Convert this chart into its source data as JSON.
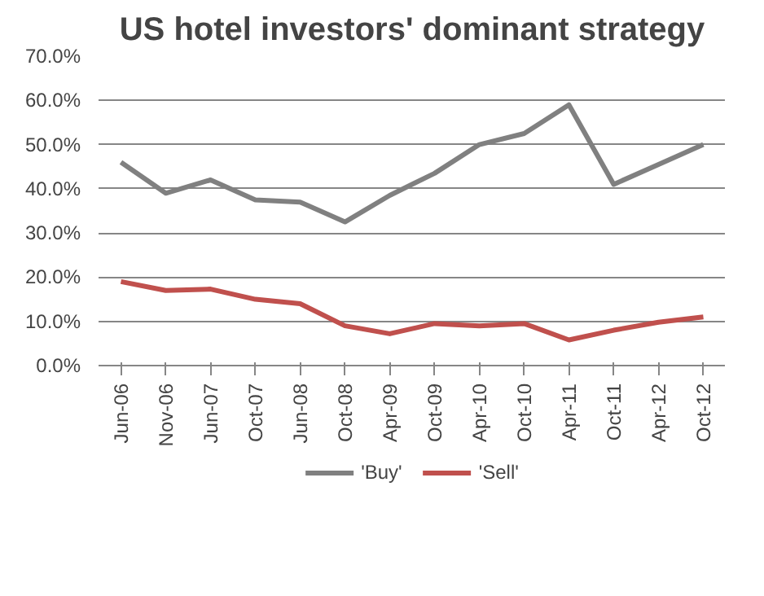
{
  "chart_data": {
    "type": "line",
    "title": "US hotel investors' dominant strategy",
    "categories": [
      "Jun-06",
      "Nov-06",
      "Jun-07",
      "Oct-07",
      "Jun-08",
      "Oct-08",
      "Apr-09",
      "Oct-09",
      "Apr-10",
      "Oct-10",
      "Apr-11",
      "Oct-11",
      "Apr-12",
      "Oct-12"
    ],
    "series": [
      {
        "name": "'Buy'",
        "color": "#808080",
        "values": [
          46,
          39,
          42,
          37.5,
          37,
          32.5,
          38.5,
          43.5,
          50,
          52.5,
          59,
          41,
          45.5,
          50
        ]
      },
      {
        "name": "'Sell'",
        "color": "#c0504d",
        "values": [
          19,
          17,
          17.3,
          15,
          14,
          9,
          7.2,
          9.5,
          9,
          9.5,
          5.8,
          8,
          9.8,
          11
        ]
      }
    ],
    "ylim": [
      0,
      70
    ],
    "yticks": [
      {
        "value": 0,
        "label": "0.0%"
      },
      {
        "value": 10,
        "label": "10.0%"
      },
      {
        "value": 20,
        "label": "20.0%"
      },
      {
        "value": 30,
        "label": "30.0%"
      },
      {
        "value": 40,
        "label": "40.0%"
      },
      {
        "value": 50,
        "label": "50.0%"
      },
      {
        "value": 60,
        "label": "60.0%"
      },
      {
        "value": 70,
        "label": "70.0%"
      }
    ],
    "grid": "y",
    "legend": "bottom",
    "line_style": "solid"
  }
}
